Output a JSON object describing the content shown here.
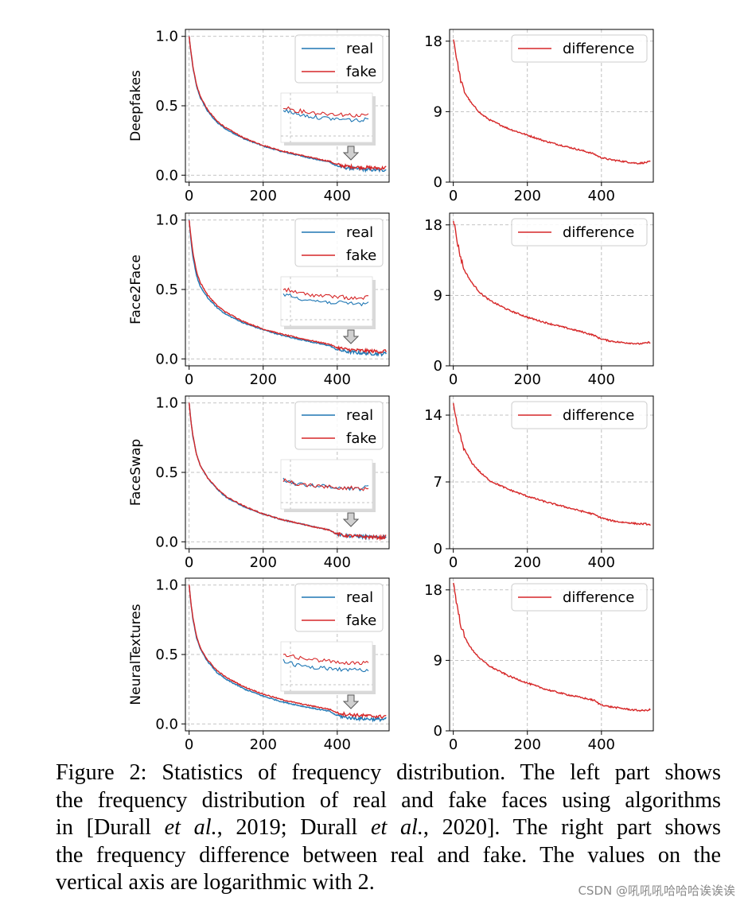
{
  "figure": {
    "rows": [
      {
        "ylabel": "Deepfakes"
      },
      {
        "ylabel": "Face2Face"
      },
      {
        "ylabel": "FaceSwap"
      },
      {
        "ylabel": "NeuralTextures"
      }
    ]
  },
  "chart_data": [
    {
      "type": "line",
      "row": "Deepfakes",
      "side": "left",
      "xlim": [
        -10,
        540
      ],
      "ylim": [
        -0.05,
        1.05
      ],
      "xticks": [
        0,
        200,
        400
      ],
      "yticks": [
        "0.0",
        "0.5",
        "1.0"
      ],
      "grid": true,
      "legend": "top-right",
      "series": [
        {
          "name": "real",
          "color": "#1f77b4",
          "x": [
            0,
            5,
            10,
            20,
            30,
            50,
            75,
            100,
            150,
            200,
            250,
            300,
            350,
            380,
            395,
            420,
            450,
            480,
            500,
            520,
            530
          ],
          "values": [
            1.0,
            0.88,
            0.78,
            0.64,
            0.56,
            0.46,
            0.38,
            0.33,
            0.26,
            0.21,
            0.17,
            0.14,
            0.11,
            0.095,
            0.07,
            0.055,
            0.045,
            0.04,
            0.038,
            0.035,
            0.04
          ]
        },
        {
          "name": "fake",
          "color": "#d62728",
          "x": [
            0,
            5,
            10,
            20,
            30,
            50,
            75,
            100,
            150,
            200,
            250,
            300,
            350,
            380,
            395,
            420,
            450,
            480,
            500,
            520,
            530
          ],
          "values": [
            1.0,
            0.89,
            0.79,
            0.65,
            0.57,
            0.47,
            0.39,
            0.34,
            0.265,
            0.215,
            0.175,
            0.145,
            0.115,
            0.1,
            0.08,
            0.065,
            0.058,
            0.055,
            0.052,
            0.05,
            0.055
          ]
        }
      ]
    },
    {
      "type": "line",
      "row": "Deepfakes",
      "side": "right",
      "xlim": [
        -10,
        540
      ],
      "ylim": [
        0,
        19.5
      ],
      "xticks": [
        0,
        200,
        400
      ],
      "yticks": [
        "0",
        "9",
        "18"
      ],
      "grid": true,
      "legend": "top-right",
      "series": [
        {
          "name": "difference",
          "color": "#d62728",
          "x": [
            0,
            5,
            10,
            20,
            30,
            50,
            75,
            100,
            150,
            200,
            250,
            300,
            350,
            380,
            395,
            420,
            450,
            480,
            500,
            520,
            530
          ],
          "values": [
            18.5,
            17.0,
            15.5,
            13.0,
            11.5,
            10.0,
            8.7,
            7.9,
            6.8,
            6.0,
            5.2,
            4.6,
            4.0,
            3.6,
            3.2,
            2.9,
            2.7,
            2.5,
            2.4,
            2.5,
            2.6
          ]
        }
      ]
    },
    {
      "type": "line",
      "row": "Face2Face",
      "side": "left",
      "xlim": [
        -10,
        540
      ],
      "ylim": [
        -0.05,
        1.05
      ],
      "xticks": [
        0,
        200,
        400
      ],
      "yticks": [
        "0.0",
        "0.5",
        "1.0"
      ],
      "grid": true,
      "legend": "top-right",
      "series": [
        {
          "name": "real",
          "color": "#1f77b4",
          "x": [
            0,
            5,
            10,
            20,
            30,
            50,
            75,
            100,
            150,
            200,
            250,
            300,
            350,
            380,
            395,
            420,
            450,
            480,
            500,
            520,
            530
          ],
          "values": [
            1.0,
            0.85,
            0.74,
            0.6,
            0.52,
            0.44,
            0.37,
            0.32,
            0.255,
            0.21,
            0.17,
            0.14,
            0.11,
            0.095,
            0.07,
            0.055,
            0.045,
            0.04,
            0.038,
            0.036,
            0.04
          ]
        },
        {
          "name": "fake",
          "color": "#d62728",
          "x": [
            0,
            5,
            10,
            20,
            30,
            50,
            75,
            100,
            150,
            200,
            250,
            300,
            350,
            380,
            395,
            420,
            450,
            480,
            500,
            520,
            530
          ],
          "values": [
            1.0,
            0.88,
            0.77,
            0.63,
            0.55,
            0.46,
            0.385,
            0.335,
            0.265,
            0.215,
            0.178,
            0.148,
            0.12,
            0.105,
            0.085,
            0.07,
            0.062,
            0.058,
            0.055,
            0.052,
            0.058
          ]
        }
      ]
    },
    {
      "type": "line",
      "row": "Face2Face",
      "side": "right",
      "xlim": [
        -10,
        540
      ],
      "ylim": [
        0,
        19.5
      ],
      "xticks": [
        0,
        200,
        400
      ],
      "yticks": [
        "0",
        "9",
        "18"
      ],
      "grid": true,
      "legend": "top-right",
      "series": [
        {
          "name": "difference",
          "color": "#d62728",
          "x": [
            0,
            5,
            10,
            20,
            30,
            50,
            75,
            100,
            150,
            200,
            250,
            300,
            350,
            380,
            395,
            420,
            450,
            480,
            500,
            520,
            530
          ],
          "values": [
            18.8,
            17.5,
            16.0,
            13.8,
            12.2,
            10.6,
            9.2,
            8.3,
            7.1,
            6.2,
            5.5,
            4.9,
            4.3,
            3.9,
            3.5,
            3.2,
            3.0,
            2.9,
            2.8,
            2.9,
            3.0
          ]
        }
      ]
    },
    {
      "type": "line",
      "row": "FaceSwap",
      "side": "left",
      "xlim": [
        -10,
        540
      ],
      "ylim": [
        -0.05,
        1.05
      ],
      "xticks": [
        0,
        200,
        400
      ],
      "yticks": [
        "0.0",
        "0.5",
        "1.0"
      ],
      "grid": true,
      "legend": "top-right",
      "series": [
        {
          "name": "real",
          "color": "#1f77b4",
          "x": [
            0,
            5,
            10,
            20,
            30,
            50,
            75,
            100,
            150,
            200,
            250,
            300,
            350,
            380,
            395,
            420,
            450,
            480,
            500,
            520,
            530
          ],
          "values": [
            1.0,
            0.87,
            0.76,
            0.63,
            0.55,
            0.46,
            0.38,
            0.32,
            0.25,
            0.2,
            0.16,
            0.13,
            0.1,
            0.085,
            0.06,
            0.045,
            0.04,
            0.035,
            0.032,
            0.03,
            0.04
          ]
        },
        {
          "name": "fake",
          "color": "#d62728",
          "x": [
            0,
            5,
            10,
            20,
            30,
            50,
            75,
            100,
            150,
            200,
            250,
            300,
            350,
            380,
            395,
            420,
            450,
            480,
            500,
            520,
            530
          ],
          "values": [
            1.0,
            0.87,
            0.77,
            0.63,
            0.55,
            0.46,
            0.385,
            0.325,
            0.255,
            0.2,
            0.16,
            0.13,
            0.1,
            0.085,
            0.06,
            0.045,
            0.04,
            0.035,
            0.033,
            0.03,
            0.035
          ]
        }
      ]
    },
    {
      "type": "line",
      "row": "FaceSwap",
      "side": "right",
      "xlim": [
        -10,
        540
      ],
      "ylim": [
        0,
        16
      ],
      "xticks": [
        0,
        200,
        400
      ],
      "yticks": [
        "0",
        "7",
        "14"
      ],
      "grid": true,
      "legend": "top-right",
      "series": [
        {
          "name": "difference",
          "color": "#d62728",
          "x": [
            0,
            5,
            10,
            20,
            30,
            50,
            75,
            100,
            150,
            200,
            250,
            300,
            350,
            380,
            395,
            420,
            450,
            480,
            500,
            520,
            530
          ],
          "values": [
            15.0,
            14.0,
            13.0,
            11.6,
            10.4,
            9.0,
            7.9,
            7.1,
            6.2,
            5.5,
            4.9,
            4.4,
            3.9,
            3.6,
            3.3,
            3.0,
            2.8,
            2.7,
            2.6,
            2.6,
            2.5
          ]
        }
      ]
    },
    {
      "type": "line",
      "row": "NeuralTextures",
      "side": "left",
      "xlim": [
        -10,
        540
      ],
      "ylim": [
        -0.05,
        1.05
      ],
      "xticks": [
        0,
        200,
        400
      ],
      "yticks": [
        "0.0",
        "0.5",
        "1.0"
      ],
      "grid": true,
      "legend": "top-right",
      "series": [
        {
          "name": "real",
          "color": "#1f77b4",
          "x": [
            0,
            5,
            10,
            20,
            30,
            50,
            75,
            100,
            150,
            200,
            250,
            300,
            350,
            380,
            395,
            420,
            450,
            480,
            500,
            520,
            530
          ],
          "values": [
            1.0,
            0.86,
            0.76,
            0.62,
            0.54,
            0.45,
            0.37,
            0.32,
            0.25,
            0.2,
            0.16,
            0.13,
            0.105,
            0.09,
            0.065,
            0.048,
            0.04,
            0.036,
            0.034,
            0.032,
            0.036
          ]
        },
        {
          "name": "fake",
          "color": "#d62728",
          "x": [
            0,
            5,
            10,
            20,
            30,
            50,
            75,
            100,
            150,
            200,
            250,
            300,
            350,
            380,
            395,
            420,
            450,
            480,
            500,
            520,
            530
          ],
          "values": [
            1.0,
            0.87,
            0.77,
            0.63,
            0.55,
            0.46,
            0.385,
            0.335,
            0.265,
            0.215,
            0.175,
            0.145,
            0.12,
            0.105,
            0.085,
            0.07,
            0.063,
            0.058,
            0.055,
            0.052,
            0.058
          ]
        }
      ]
    },
    {
      "type": "line",
      "row": "NeuralTextures",
      "side": "right",
      "xlim": [
        -10,
        540
      ],
      "ylim": [
        0,
        19.5
      ],
      "xticks": [
        0,
        200,
        400
      ],
      "yticks": [
        "0",
        "9",
        "18"
      ],
      "grid": true,
      "legend": "top-right",
      "series": [
        {
          "name": "difference",
          "color": "#d62728",
          "x": [
            0,
            5,
            10,
            20,
            30,
            50,
            75,
            100,
            150,
            200,
            250,
            300,
            350,
            380,
            395,
            420,
            450,
            480,
            500,
            520,
            530
          ],
          "values": [
            19.0,
            17.6,
            16.0,
            13.6,
            12.0,
            10.4,
            9.1,
            8.2,
            7.0,
            6.1,
            5.3,
            4.7,
            4.2,
            3.9,
            3.4,
            3.1,
            2.9,
            2.7,
            2.6,
            2.6,
            2.7
          ]
        }
      ]
    }
  ],
  "caption": {
    "lines": [
      [
        {
          "t": "Figure 2:  Statistics of frequency distribution.  The left part shows",
          "i": false
        }
      ],
      [
        {
          "t": "the frequency distribution of real and fake faces using algorithms",
          "i": false
        }
      ],
      [
        {
          "t": "in [Durall ",
          "i": false
        },
        {
          "t": "et al.",
          "i": true
        },
        {
          "t": ", 2019; Durall ",
          "i": false
        },
        {
          "t": "et al.",
          "i": true
        },
        {
          "t": ", 2020].  The right part shows",
          "i": false
        }
      ],
      [
        {
          "t": "the frequency difference between real and fake.  The values on the",
          "i": false
        }
      ],
      [
        {
          "t": "vertical axis are logarithmic with 2.",
          "i": false
        }
      ]
    ]
  },
  "watermark": "CSDN @吼吼吼哈哈哈诶诶诶"
}
